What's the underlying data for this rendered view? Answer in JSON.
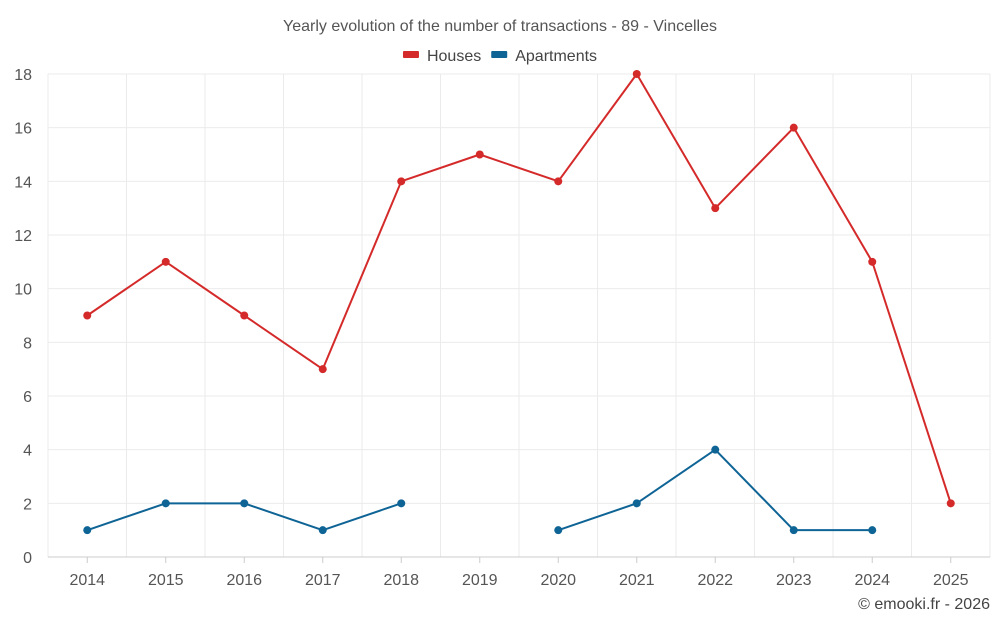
{
  "chart_data": {
    "type": "line",
    "title": "Yearly evolution of the number of transactions - 89 - Vincelles",
    "categories": [
      "2014",
      "2015",
      "2016",
      "2017",
      "2018",
      "2019",
      "2020",
      "2021",
      "2022",
      "2023",
      "2024",
      "2025"
    ],
    "series": [
      {
        "name": "Houses",
        "color": "#d42a2a",
        "values": [
          9,
          11,
          9,
          7,
          14,
          15,
          14,
          18,
          13,
          16,
          11,
          2
        ]
      },
      {
        "name": "Apartments",
        "color": "#0f6496",
        "values": [
          1,
          2,
          2,
          1,
          2,
          null,
          1,
          2,
          4,
          1,
          1,
          null
        ]
      }
    ],
    "ylim": [
      0,
      18
    ],
    "yticks": [
      0,
      2,
      4,
      6,
      8,
      10,
      12,
      14,
      16,
      18
    ],
    "xlabel": "",
    "ylabel": "",
    "grid": true,
    "legend_position": "top-center"
  },
  "footer": {
    "copyright": "© emooki.fr - 2026"
  }
}
